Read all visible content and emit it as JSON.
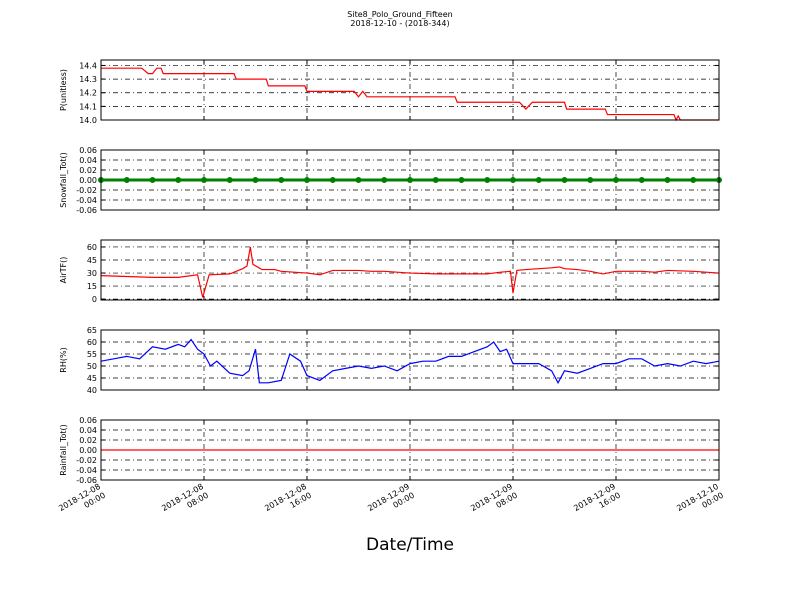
{
  "title": "Site8_Polo_Ground_Fifteen",
  "subtitle": "2018-12-10 - (2018-344)",
  "xlabel": "Date/Time",
  "chart_data": [
    {
      "type": "line",
      "ylabel": "P(unitless)",
      "color": "#ff0000",
      "grid": true,
      "xlim": [
        "2018-12-08 00:00",
        "2018-12-10 00:00"
      ],
      "xticks": [
        "2018-12-08 00:00",
        "2018-12-08 08:00",
        "2018-12-08 16:00",
        "2018-12-09 00:00",
        "2018-12-09 08:00",
        "2018-12-09 16:00",
        "2018-12-10 00:00"
      ],
      "ylim": [
        14.0,
        14.44
      ],
      "yticks": [
        {
          "value": 14,
          "label": "14.0"
        },
        14.1,
        14.2,
        14.3,
        14.4
      ],
      "x": [
        "2018-12-08 00:00",
        "2018-12-08 03:10",
        "2018-12-08 03:40",
        "2018-12-08 04:00",
        "2018-12-08 04:20",
        "2018-12-08 04:40",
        "2018-12-08 04:50",
        "2018-12-08 10:20",
        "2018-12-08 10:30",
        "2018-12-08 12:50",
        "2018-12-08 13:00",
        "2018-12-08 15:50",
        "2018-12-08 16:00",
        "2018-12-08 19:40",
        "2018-12-08 20:00",
        "2018-12-08 20:20",
        "2018-12-08 20:40",
        "2018-12-09 03:30",
        "2018-12-09 03:40",
        "2018-12-09 08:30",
        "2018-12-09 09:00",
        "2018-12-09 09:30",
        "2018-12-09 12:00",
        "2018-12-09 12:10",
        "2018-12-09 15:10",
        "2018-12-09 15:20",
        "2018-12-09 20:30",
        "2018-12-09 20:40",
        "2018-12-09 20:50",
        "2018-12-09 21:00",
        "2018-12-10 00:00"
      ],
      "values": [
        14.38,
        14.38,
        14.34,
        14.34,
        14.38,
        14.38,
        14.34,
        14.34,
        14.3,
        14.3,
        14.25,
        14.25,
        14.21,
        14.21,
        14.17,
        14.21,
        14.17,
        14.17,
        14.13,
        14.13,
        14.08,
        14.13,
        14.13,
        14.08,
        14.08,
        14.04,
        14.04,
        14.0,
        14.03,
        14.0,
        14.0
      ]
    },
    {
      "type": "line",
      "ylabel": "Snowfall_Tot()",
      "color": "#008000",
      "marker": true,
      "grid": true,
      "xlim": [
        "2018-12-08 00:00",
        "2018-12-10 00:00"
      ],
      "xticks": [
        "2018-12-08 00:00",
        "2018-12-08 08:00",
        "2018-12-08 16:00",
        "2018-12-09 00:00",
        "2018-12-09 08:00",
        "2018-12-09 16:00",
        "2018-12-10 00:00"
      ],
      "ylim": [
        -0.06,
        0.06
      ],
      "yticks": [
        -0.06,
        -0.04,
        -0.02,
        {
          "value": 0,
          "label": "0.00"
        },
        0.02,
        0.04,
        0.06
      ],
      "x": [
        "2018-12-08 00:00",
        "2018-12-08 02:00",
        "2018-12-08 04:00",
        "2018-12-08 06:00",
        "2018-12-08 08:00",
        "2018-12-08 10:00",
        "2018-12-08 12:00",
        "2018-12-08 14:00",
        "2018-12-08 16:00",
        "2018-12-08 18:00",
        "2018-12-08 20:00",
        "2018-12-08 22:00",
        "2018-12-09 00:00",
        "2018-12-09 02:00",
        "2018-12-09 04:00",
        "2018-12-09 06:00",
        "2018-12-09 08:00",
        "2018-12-09 10:00",
        "2018-12-09 12:00",
        "2018-12-09 14:00",
        "2018-12-09 16:00",
        "2018-12-09 18:00",
        "2018-12-09 20:00",
        "2018-12-09 22:00",
        "2018-12-10 00:00"
      ],
      "values": [
        0,
        0,
        0,
        0,
        0,
        0,
        0,
        0,
        0,
        0,
        0,
        0,
        0,
        0,
        0,
        0,
        0,
        0,
        0,
        0,
        0,
        0,
        0,
        0,
        0
      ]
    },
    {
      "type": "line",
      "ylabel": "AirTF()",
      "color": "#ff0000",
      "grid": true,
      "xlim": [
        "2018-12-08 00:00",
        "2018-12-10 00:00"
      ],
      "xticks": [
        "2018-12-08 00:00",
        "2018-12-08 08:00",
        "2018-12-08 16:00",
        "2018-12-09 00:00",
        "2018-12-09 08:00",
        "2018-12-09 16:00",
        "2018-12-10 00:00"
      ],
      "ylim": [
        -1,
        68
      ],
      "yticks": [
        0,
        15,
        30,
        45,
        60
      ],
      "x": [
        "2018-12-08 00:00",
        "2018-12-08 02:00",
        "2018-12-08 04:00",
        "2018-12-08 06:00",
        "2018-12-08 07:30",
        "2018-12-08 07:54",
        "2018-12-08 08:24",
        "2018-12-08 10:00",
        "2018-12-08 11:00",
        "2018-12-08 11:20",
        "2018-12-08 11:36",
        "2018-12-08 11:48",
        "2018-12-08 12:30",
        "2018-12-08 13:30",
        "2018-12-08 14:00",
        "2018-12-08 15:00",
        "2018-12-08 16:00",
        "2018-12-08 17:00",
        "2018-12-08 18:00",
        "2018-12-08 20:00",
        "2018-12-08 21:00",
        "2018-12-08 22:00",
        "2018-12-09 00:00",
        "2018-12-09 02:00",
        "2018-12-09 04:00",
        "2018-12-09 06:00",
        "2018-12-09 07:00",
        "2018-12-09 07:48",
        "2018-12-09 08:00",
        "2018-12-09 08:18",
        "2018-12-09 09:00",
        "2018-12-09 11:00",
        "2018-12-09 11:36",
        "2018-12-09 12:00",
        "2018-12-09 13:00",
        "2018-12-09 14:00",
        "2018-12-09 15:00",
        "2018-12-09 16:00",
        "2018-12-09 18:00",
        "2018-12-09 19:00",
        "2018-12-09 20:00",
        "2018-12-09 22:00",
        "2018-12-10 00:00"
      ],
      "values": [
        27,
        26,
        25,
        25,
        28,
        2,
        28,
        29,
        35,
        38,
        60,
        40,
        34,
        34,
        32,
        31,
        30,
        28,
        33,
        33,
        32,
        32,
        30,
        29,
        29,
        29,
        31,
        32,
        7,
        33,
        34,
        36,
        37,
        35,
        34,
        32,
        29,
        32,
        32,
        31,
        33,
        32,
        30
      ]
    },
    {
      "type": "line",
      "ylabel": "RH(%)",
      "color": "#0000ff",
      "grid": true,
      "xlim": [
        "2018-12-08 00:00",
        "2018-12-10 00:00"
      ],
      "xticks": [
        "2018-12-08 00:00",
        "2018-12-08 08:00",
        "2018-12-08 16:00",
        "2018-12-09 00:00",
        "2018-12-09 08:00",
        "2018-12-09 16:00",
        "2018-12-10 00:00"
      ],
      "ylim": [
        40,
        65
      ],
      "yticks": [
        40,
        45,
        50,
        55,
        60,
        65
      ],
      "x": [
        "2018-12-08 00:00",
        "2018-12-08 01:00",
        "2018-12-08 02:00",
        "2018-12-08 03:00",
        "2018-12-08 04:00",
        "2018-12-08 05:00",
        "2018-12-08 06:00",
        "2018-12-08 06:30",
        "2018-12-08 07:00",
        "2018-12-08 07:30",
        "2018-12-08 08:00",
        "2018-12-08 08:30",
        "2018-12-08 09:00",
        "2018-12-08 10:00",
        "2018-12-08 11:00",
        "2018-12-08 11:30",
        "2018-12-08 12:00",
        "2018-12-08 12:18",
        "2018-12-08 13:00",
        "2018-12-08 14:00",
        "2018-12-08 14:40",
        "2018-12-08 15:30",
        "2018-12-08 16:00",
        "2018-12-08 17:00",
        "2018-12-08 18:00",
        "2018-12-08 19:00",
        "2018-12-08 20:00",
        "2018-12-08 21:00",
        "2018-12-08 22:00",
        "2018-12-08 23:00",
        "2018-12-09 00:00",
        "2018-12-09 01:00",
        "2018-12-09 02:00",
        "2018-12-09 03:00",
        "2018-12-09 04:00",
        "2018-12-09 05:00",
        "2018-12-09 06:00",
        "2018-12-09 06:30",
        "2018-12-09 07:00",
        "2018-12-09 07:30",
        "2018-12-09 08:00",
        "2018-12-09 09:00",
        "2018-12-09 10:00",
        "2018-12-09 11:00",
        "2018-12-09 11:30",
        "2018-12-09 12:00",
        "2018-12-09 13:00",
        "2018-12-09 14:00",
        "2018-12-09 15:00",
        "2018-12-09 16:00",
        "2018-12-09 17:00",
        "2018-12-09 18:00",
        "2018-12-09 19:00",
        "2018-12-09 20:00",
        "2018-12-09 21:00",
        "2018-12-09 22:00",
        "2018-12-09 23:00",
        "2018-12-10 00:00"
      ],
      "values": [
        52,
        53,
        54,
        53,
        58,
        57,
        59,
        58,
        61,
        57,
        55,
        50,
        52,
        47,
        46,
        48,
        57,
        43,
        43,
        44,
        55,
        52,
        46,
        44,
        48,
        49,
        50,
        49,
        50,
        48,
        51,
        52,
        52,
        54,
        54,
        56,
        58,
        60,
        56,
        57,
        51,
        51,
        51,
        48,
        43,
        48,
        47,
        49,
        51,
        51,
        53,
        53,
        50,
        51,
        50,
        52,
        51,
        52
      ]
    },
    {
      "type": "line",
      "ylabel": "Rainfall_Tot()",
      "color": "#ff0000",
      "grid": true,
      "xticklabels": true,
      "xlim": [
        "2018-12-08 00:00",
        "2018-12-10 00:00"
      ],
      "xticks": [
        "2018-12-08 00:00",
        "2018-12-08 08:00",
        "2018-12-08 16:00",
        "2018-12-09 00:00",
        "2018-12-09 08:00",
        "2018-12-09 16:00",
        "2018-12-10 00:00"
      ],
      "ylim": [
        -0.06,
        0.06
      ],
      "yticks": [
        -0.06,
        -0.04,
        -0.02,
        {
          "value": 0,
          "label": "0.00"
        },
        0.02,
        0.04,
        0.06
      ],
      "x": [
        "2018-12-08 00:00",
        "2018-12-08 02:00",
        "2018-12-08 04:00",
        "2018-12-08 06:00",
        "2018-12-08 08:00",
        "2018-12-08 10:00",
        "2018-12-08 12:00",
        "2018-12-08 14:00",
        "2018-12-08 16:00",
        "2018-12-08 18:00",
        "2018-12-08 20:00",
        "2018-12-08 22:00",
        "2018-12-09 00:00",
        "2018-12-09 02:00",
        "2018-12-09 04:00",
        "2018-12-09 06:00",
        "2018-12-09 08:00",
        "2018-12-09 10:00",
        "2018-12-09 12:00",
        "2018-12-09 14:00",
        "2018-12-09 16:00",
        "2018-12-09 18:00",
        "2018-12-09 20:00",
        "2018-12-09 22:00",
        "2018-12-10 00:00"
      ],
      "values": [
        0,
        0,
        0,
        0,
        0,
        0,
        0,
        0,
        0,
        0,
        0,
        0,
        0,
        0,
        0,
        0,
        0,
        0,
        0,
        0,
        0,
        0,
        0,
        0,
        0
      ]
    }
  ]
}
